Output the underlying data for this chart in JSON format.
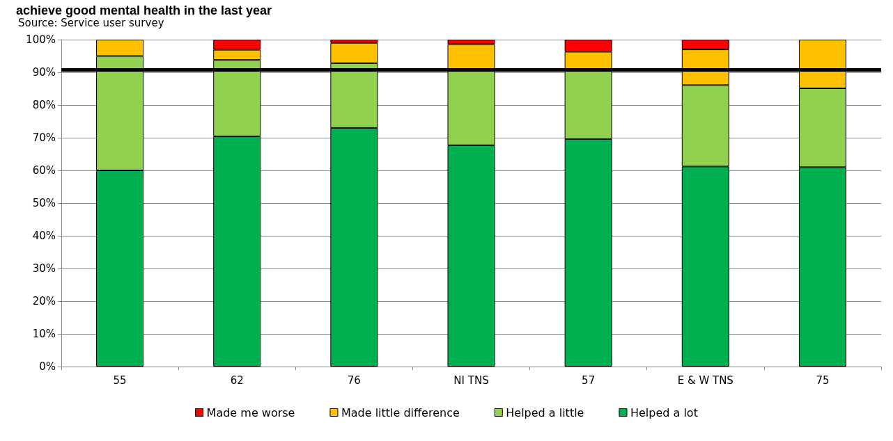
{
  "chart_data": {
    "type": "bar",
    "title": "achieve good mental health in the last year",
    "annotations": [
      "Source: Service user survey"
    ],
    "categories": [
      "55",
      "62",
      "76",
      "NI TNS",
      "57",
      "E & W TNS",
      "75"
    ],
    "stacked": true,
    "series": [
      {
        "name": "Helped a lot",
        "color": "#00b050",
        "values": [
          60,
          70.4,
          73,
          67.7,
          69.6,
          61.2,
          61
        ]
      },
      {
        "name": "Helped a little",
        "color": "#92d050",
        "values": [
          35,
          23.4,
          19.8,
          23.3,
          21.4,
          24.9,
          24.1
        ]
      },
      {
        "name": "Made little difference",
        "color": "#ffc000",
        "values": [
          5,
          3.1,
          6.2,
          7.6,
          5.3,
          10.9,
          14.9
        ]
      },
      {
        "name": "Made me worse",
        "color": "#ff0000",
        "values": [
          0,
          3.1,
          1,
          1.4,
          3.7,
          3,
          0
        ]
      }
    ],
    "ylim": [
      0,
      100
    ],
    "yticks": [
      {
        "value": 0,
        "label": "0%"
      },
      {
        "value": 10,
        "label": "10%"
      },
      {
        "value": 20,
        "label": "20%"
      },
      {
        "value": 30,
        "label": "30%"
      },
      {
        "value": 40,
        "label": "40%"
      },
      {
        "value": 50,
        "label": "50%"
      },
      {
        "value": 60,
        "label": "60%"
      },
      {
        "value": 70,
        "label": "70%"
      },
      {
        "value": 80,
        "label": "80%"
      },
      {
        "value": 90,
        "label": "90%"
      },
      {
        "value": 100,
        "label": "100%"
      }
    ],
    "ref_lines": [
      {
        "axis": "y",
        "value": 90.8,
        "label": null,
        "color": "#000000"
      }
    ],
    "grid": "y",
    "legend": "bottom"
  }
}
